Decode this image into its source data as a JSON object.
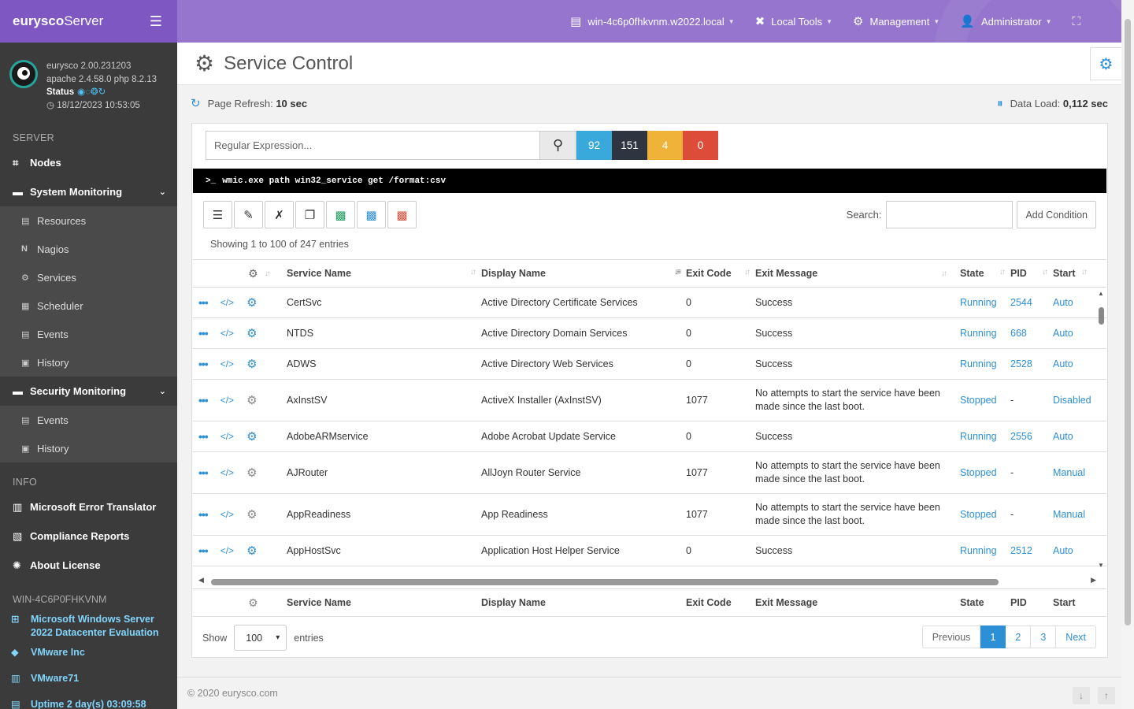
{
  "brand": {
    "bold": "eurysco",
    "rest": "Server"
  },
  "topnav": {
    "host": "win-4c6p0fhkvnm.w2022.local",
    "local_tools": "Local Tools",
    "management": "Management",
    "user": "Administrator"
  },
  "profile": {
    "version": "eurysco 2.00.231203",
    "stack": "apache 2.4.58.0  php 8.2.13",
    "status_label": "Status",
    "datetime": "18/12/2023 10:53:05"
  },
  "sidebar": {
    "server_section": "SERVER",
    "nodes": "Nodes",
    "system_monitoring": "System Monitoring",
    "sys_items": [
      "Resources",
      "Nagios",
      "Services",
      "Scheduler",
      "Events",
      "History"
    ],
    "security_monitoring": "Security Monitoring",
    "sec_items": [
      "Events",
      "History"
    ],
    "info_section": "INFO",
    "error_translator": "Microsoft Error Translator",
    "compliance": "Compliance Reports",
    "license": "About License",
    "host_section": "WIN-4C6P0FHKVNM",
    "os": "Microsoft Windows Server 2022 Datacenter Evaluation",
    "vendor": "VMware Inc",
    "model": "VMware71",
    "uptime": "Uptime 2 day(s) 03:09:58"
  },
  "page": {
    "title": "Service Control",
    "refresh_label": "Page Refresh:",
    "refresh_value": "10 sec",
    "load_label": "Data Load:",
    "load_value": "0,112 sec"
  },
  "filter": {
    "placeholder": "Regular Expression...",
    "counts": [
      {
        "value": "92",
        "color": "#39a9dc"
      },
      {
        "value": "151",
        "color": "#2f3441"
      },
      {
        "value": "4",
        "color": "#f0b33a"
      },
      {
        "value": "0",
        "color": "#dd4b39"
      }
    ]
  },
  "command": "wmic.exe path win32_service get /format:csv",
  "table_tools": {
    "search_label": "Search:",
    "add_condition": "Add Condition",
    "showing": "Showing 1 to 100 of 247 entries"
  },
  "columns": [
    "Service Name",
    "Display Name",
    "Exit Code",
    "Exit Message",
    "State",
    "PID",
    "Start"
  ],
  "rows": [
    {
      "name": "CertSvc",
      "display": "Active Directory Certificate Services",
      "code": "0",
      "msg": "Success",
      "state": "Running",
      "pid": "2544",
      "start": "Auto",
      "gear_active": true
    },
    {
      "name": "NTDS",
      "display": "Active Directory Domain Services",
      "code": "0",
      "msg": "Success",
      "state": "Running",
      "pid": "668",
      "start": "Auto",
      "gear_active": true
    },
    {
      "name": "ADWS",
      "display": "Active Directory Web Services",
      "code": "0",
      "msg": "Success",
      "state": "Running",
      "pid": "2528",
      "start": "Auto",
      "gear_active": true
    },
    {
      "name": "AxInstSV",
      "display": "ActiveX Installer (AxInstSV)",
      "code": "1077",
      "msg": "No attempts to start the service have been made since the last boot.",
      "state": "Stopped",
      "pid": "-",
      "start": "Disabled",
      "gear_active": false
    },
    {
      "name": "AdobeARMservice",
      "display": "Adobe Acrobat Update Service",
      "code": "0",
      "msg": "Success",
      "state": "Running",
      "pid": "2556",
      "start": "Auto",
      "gear_active": true
    },
    {
      "name": "AJRouter",
      "display": "AllJoyn Router Service",
      "code": "1077",
      "msg": "No attempts to start the service have been made since the last boot.",
      "state": "Stopped",
      "pid": "-",
      "start": "Manual",
      "gear_active": false
    },
    {
      "name": "AppReadiness",
      "display": "App Readiness",
      "code": "1077",
      "msg": "No attempts to start the service have been made since the last boot.",
      "state": "Stopped",
      "pid": "-",
      "start": "Manual",
      "gear_active": false
    },
    {
      "name": "AppHostSvc",
      "display": "Application Host Helper Service",
      "code": "0",
      "msg": "Success",
      "state": "Running",
      "pid": "2512",
      "start": "Auto",
      "gear_active": true
    }
  ],
  "length": {
    "show": "Show",
    "value": "100",
    "entries": "entries"
  },
  "pagination": [
    "Previous",
    "1",
    "2",
    "3",
    "Next"
  ],
  "footer": "© 2020  eurysco.com"
}
